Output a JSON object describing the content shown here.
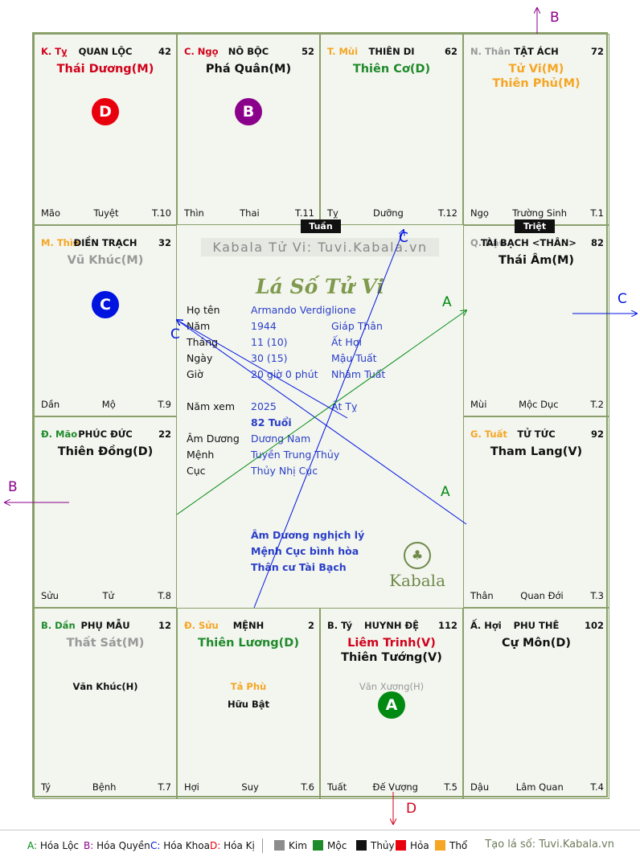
{
  "board": {
    "cells": [
      {
        "can": "K. Tỵ",
        "can_color": "#d0021b",
        "name": "QUAN LỘC",
        "age": "42",
        "stars": [
          {
            "t": "Thái Dương(M)",
            "c": "#d0021b"
          }
        ],
        "minor": [],
        "b1": "Mão",
        "b2": "Tuyệt",
        "b3": "T.10"
      },
      {
        "can": "C. Ngọ",
        "can_color": "#d0021b",
        "name": "NÔ BỘC",
        "age": "52",
        "stars": [
          {
            "t": "Phá Quân(M)",
            "c": "#111111"
          }
        ],
        "minor": [],
        "b1": "Thìn",
        "b2": "Thai",
        "b3": "T.11"
      },
      {
        "can": "T. Mùi",
        "can_color": "#f5a623",
        "name": "THIÊN DI",
        "age": "62",
        "stars": [
          {
            "t": "Thiên Cơ(D)",
            "c": "#1f8a2a"
          }
        ],
        "minor": [],
        "b1": "Tỵ",
        "b2": "Dưỡng",
        "b3": "T.12"
      },
      {
        "can": "N. Thân",
        "can_color": "#999999",
        "name": "TẬT ÁCH",
        "age": "72",
        "stars": [
          {
            "t": "Tử Vi(M)",
            "c": "#f5a623"
          },
          {
            "t": "Thiên Phủ(M)",
            "c": "#f5a623"
          }
        ],
        "minor": [],
        "b1": "Ngọ",
        "b2": "Trường Sinh",
        "b3": "T.1"
      },
      {
        "can": "M. Thìn",
        "can_color": "#f5a623",
        "name": "ĐIỀN TRẠCH",
        "age": "32",
        "stars": [
          {
            "t": "Vũ Khúc(M)",
            "c": "#999999"
          }
        ],
        "minor": [],
        "b1": "Dần",
        "b2": "Mộ",
        "b3": "T.9"
      },
      {
        "can": "Q. Dậu",
        "can_color": "#999999",
        "name": "TÀI BẠCH <THÂN>",
        "age": "82",
        "stars": [
          {
            "t": "Thái Âm(M)",
            "c": "#111111"
          }
        ],
        "minor": [],
        "b1": "Mùi",
        "b2": "Mộc Dục",
        "b3": "T.2"
      },
      {
        "can": "Đ. Mão",
        "can_color": "#1f8a2a",
        "name": "PHÚC ĐỨC",
        "age": "22",
        "stars": [
          {
            "t": "Thiên Đồng(D)",
            "c": "#111111"
          }
        ],
        "minor": [],
        "b1": "Sửu",
        "b2": "Tử",
        "b3": "T.8"
      },
      {
        "can": "G. Tuất",
        "can_color": "#f5a623",
        "name": "TỬ TỨC",
        "age": "92",
        "stars": [
          {
            "t": "Tham Lang(V)",
            "c": "#111111"
          }
        ],
        "minor": [],
        "b1": "Thân",
        "b2": "Quan Đới",
        "b3": "T.3"
      },
      {
        "can": "B. Dần",
        "can_color": "#1f8a2a",
        "name": "PHỤ MẪU",
        "age": "12",
        "stars": [
          {
            "t": "Thất Sát(M)",
            "c": "#999999"
          }
        ],
        "minor": [
          {
            "t": "Văn Khúc(H)",
            "c": "#111111"
          }
        ],
        "b1": "Tý",
        "b2": "Bệnh",
        "b3": "T.7"
      },
      {
        "can": "Đ. Sửu",
        "can_color": "#f5a623",
        "name": "MỆNH",
        "age": "2",
        "stars": [
          {
            "t": "Thiên Lương(D)",
            "c": "#1f8a2a"
          }
        ],
        "minor": [
          {
            "t": "Tả Phù",
            "c": "#f5a623"
          },
          {
            "t": "Hữu Bật",
            "c": "#111111"
          }
        ],
        "b1": "Hợi",
        "b2": "Suy",
        "b3": "T.6"
      },
      {
        "can": "B. Tý",
        "can_color": "#111111",
        "name": "HUYNH ĐỆ",
        "age": "112",
        "stars": [
          {
            "t": "Liêm Trinh(V)",
            "c": "#d0021b"
          },
          {
            "t": "Thiên Tướng(V)",
            "c": "#111111"
          }
        ],
        "minor": [
          {
            "t": "Văn Xương(H)",
            "c": "#999999"
          }
        ],
        "b1": "Tuất",
        "b2": "Đế Vượng",
        "b3": "T.5"
      },
      {
        "can": "Ấ. Hợi",
        "can_color": "#111111",
        "name": "PHU THÊ",
        "age": "102",
        "stars": [
          {
            "t": "Cự Môn(D)",
            "c": "#111111"
          }
        ],
        "minor": [],
        "b1": "Dậu",
        "b2": "Lâm Quan",
        "b3": "T.4"
      }
    ],
    "badges": [
      {
        "letter": "D",
        "color": "#e8000d"
      },
      {
        "letter": "B",
        "color": "#8b008b"
      },
      {
        "letter": "C",
        "color": "#0014e0"
      },
      {
        "letter": "A",
        "color": "#008a12"
      }
    ],
    "tags": {
      "tuan": "Tuần",
      "triet": "Triệt"
    }
  },
  "center": {
    "watermark": "Kabala Tử Vi: Tuvi.Kabala.vn",
    "logo_title": "Lá Số Tử Vi",
    "rows": [
      {
        "label": "Họ tên",
        "v1": "Armando Verdiglione",
        "v2": ""
      },
      {
        "label": "Năm",
        "v1": "1944",
        "v2": "Giáp Thân"
      },
      {
        "label": "Tháng",
        "v1": "11  (10)",
        "v2": "Ất Hợi"
      },
      {
        "label": "Ngày",
        "v1": "30  (15)",
        "v2": "Mậu Tuất"
      },
      {
        "label": "Giờ",
        "v1": "20 giờ 0 phút",
        "v2": "Nhâm Tuất"
      },
      {
        "label": "Năm xem",
        "v1": "2025",
        "v2": "Ất Tỵ"
      },
      {
        "label": "",
        "v1": "82 Tuổi",
        "v2": ""
      },
      {
        "label": "Âm Dương",
        "v1": "Dương Nam",
        "v2": ""
      },
      {
        "label": "Mệnh",
        "v1": "Tuyền Trung Thủy",
        "v2": ""
      },
      {
        "label": "Cục",
        "v1": "Thủy Nhị Cục",
        "v2": ""
      }
    ],
    "notes": [
      "Âm Dương nghịch lý",
      "Mệnh Cục bình hòa",
      "Thân cư Tài Bạch"
    ],
    "kabala": "Kabala"
  },
  "arrows": {
    "labels": {
      "B_top": "B",
      "C_right": "C",
      "B_left": "B",
      "D_bottom": "D",
      "C_center_top": "C",
      "C_center_left": "C",
      "A_upper": "A",
      "A_lower": "A"
    }
  },
  "legend": {
    "items": [
      {
        "code": "A:",
        "text": " Hóa Lộc",
        "color": "#008a12"
      },
      {
        "code": "B:",
        "text": " Hóa Quyền",
        "color": "#8b008b"
      },
      {
        "code": "C:",
        "text": " Hóa Khoa",
        "color": "#0014e0"
      },
      {
        "code": "D:",
        "text": " Hóa Kị",
        "color": "#e8000d"
      }
    ],
    "elements": [
      {
        "name": "Kim",
        "color": "#8c8c8c"
      },
      {
        "name": "Mộc",
        "color": "#1f8a2a"
      },
      {
        "name": "Thủy",
        "color": "#111111"
      },
      {
        "name": "Hỏa",
        "color": "#e8000d"
      },
      {
        "name": "Thổ",
        "color": "#f5a623"
      }
    ],
    "footer": "Tạo lá số: Tuvi.Kabala.vn"
  }
}
